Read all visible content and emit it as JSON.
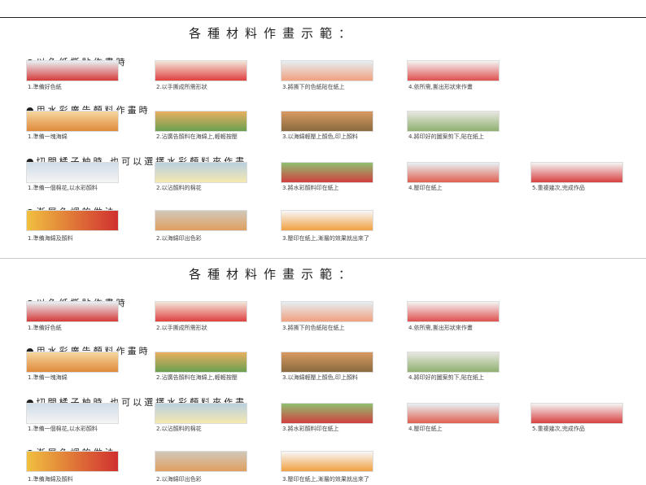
{
  "panels": [
    {
      "title": "各種材料作畫示範：",
      "sections": [
        {
          "heading": "●以色紙撕貼作畫時",
          "steps": [
            {
              "caption": "1.準備好色紙"
            },
            {
              "caption": "2.以手撕成所需形狀"
            },
            {
              "caption": "3.將撕下的色紙貼在紙上"
            },
            {
              "caption": "4.依所需,撕出形狀來作畫"
            }
          ]
        },
        {
          "heading": "●用水彩廣告顏料作畫時",
          "steps": [
            {
              "caption": "1.準備一塊海綿"
            },
            {
              "caption": "2.沾廣告顏料在海綿上,輕輕按壓"
            },
            {
              "caption": "3.以海綿輕壓上顏色,印上顏料"
            },
            {
              "caption": "4.將印好的圖案剪下,貼在紙上"
            }
          ]
        },
        {
          "heading": "●切開橘子柚時,也可以選擇水彩顏料來作畫",
          "steps": [
            {
              "caption": "1.準備一個棉花,以水彩顏料"
            },
            {
              "caption": "2.以沾顏料的棉花"
            },
            {
              "caption": "3.將水彩顏料印在紙上"
            },
            {
              "caption": "4.壓印在紙上"
            },
            {
              "caption": "5.重複幾次,完成作品"
            }
          ]
        },
        {
          "heading": "●漸層色調的做法",
          "steps": [
            {
              "caption": "1.準備海綿及顏料"
            },
            {
              "caption": "2.以海綿印出色彩"
            },
            {
              "caption": "3.壓印在紙上,漸層的效果就出來了"
            }
          ]
        }
      ]
    },
    {
      "title": "各種材料作畫示範：",
      "sections": [
        {
          "heading": "●以色紙撕貼作畫時",
          "steps": [
            {
              "caption": "1.準備好色紙"
            },
            {
              "caption": "2.以手撕成所需形狀"
            },
            {
              "caption": "3.將撕下的色紙貼在紙上"
            },
            {
              "caption": "4.依所需,撕出形狀來作畫"
            }
          ]
        },
        {
          "heading": "●用水彩廣告顏料作畫時",
          "steps": [
            {
              "caption": "1.準備一塊海綿"
            },
            {
              "caption": "2.沾廣告顏料在海綿上,輕輕按壓"
            },
            {
              "caption": "3.以海綿輕壓上顏色,印上顏料"
            },
            {
              "caption": "4.將印好的圖案剪下,貼在紙上"
            }
          ]
        },
        {
          "heading": "●切開橘子柚時,也可以選擇水彩顏料來作畫",
          "steps": [
            {
              "caption": "1.準備一個棉花,以水彩顏料"
            },
            {
              "caption": "2.以沾顏料的棉花"
            },
            {
              "caption": "3.將水彩顏料印在紙上"
            },
            {
              "caption": "4.壓印在紙上"
            },
            {
              "caption": "5.重複幾次,完成作品"
            }
          ]
        },
        {
          "heading": "●漸層色調的做法",
          "steps": [
            {
              "caption": "1.準備海綿及顏料"
            },
            {
              "caption": "2.以海綿印出色彩"
            },
            {
              "caption": "3.壓印在紙上,漸層的效果就出來了"
            }
          ]
        }
      ]
    }
  ]
}
